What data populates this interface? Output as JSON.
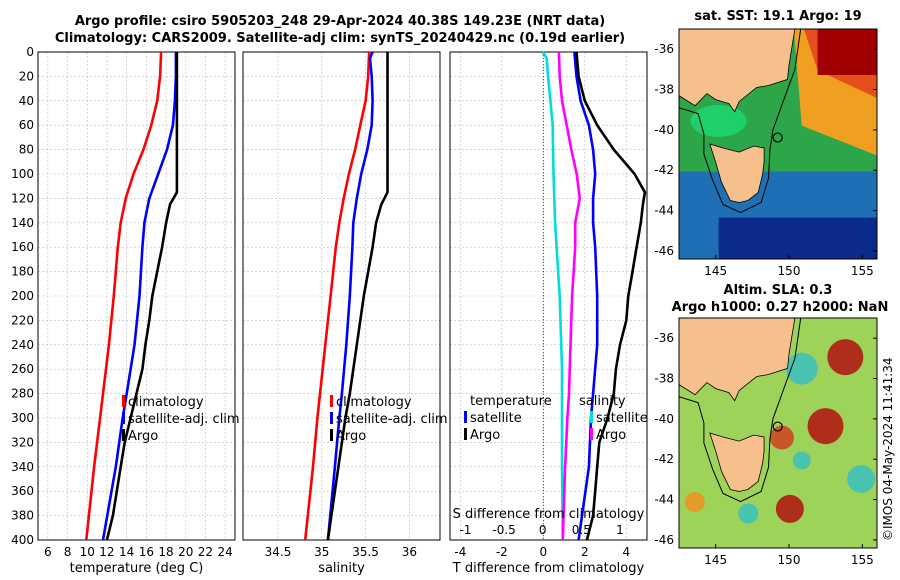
{
  "header": {
    "line1": "Argo profile: csiro 5905203_248 29-Apr-2024 40.38S 149.23E (NRT data)",
    "line2": "Climatology: CARS2009. Satellite-adj clim: synTS_20240429.nc (0.19d earlier)"
  },
  "maps": {
    "sst_title": "sat. SST: 19.1 Argo: 19",
    "altim_title_1": "Altim. SLA: 0.3",
    "altim_title_2": "Argo h1000: 0.27 h2000: NaN",
    "lat_ticks": [
      "-36",
      "-38",
      "-40",
      "-42",
      "-44",
      "-46"
    ],
    "lon_ticks": [
      "145",
      "150",
      "155"
    ],
    "float_marker": {
      "lon": 149.23,
      "lat": -40.38
    }
  },
  "stamp": "©IMOS 04-May-2024 11:41:34",
  "colors": {
    "climatology": "#ff0000",
    "satellite": "#0000ff",
    "argo": "#000000",
    "salinity_diff": "#ff00ff",
    "satellite_s_diff": "#00dddd"
  },
  "chart_data": [
    {
      "type": "line",
      "xlabel": "temperature (deg C)",
      "ylabel": "depth",
      "xlim": [
        5,
        25
      ],
      "ylim": [
        400,
        0
      ],
      "xticks": [
        6,
        8,
        10,
        12,
        14,
        16,
        18,
        20,
        22,
        24
      ],
      "yticks": [
        0,
        20,
        40,
        60,
        80,
        100,
        120,
        140,
        160,
        180,
        200,
        220,
        240,
        260,
        280,
        300,
        320,
        340,
        360,
        380,
        400
      ],
      "grid": true,
      "legend": "lower-right",
      "legend_labels": [
        "climatology",
        "satellite-adj. clim",
        "Argo"
      ],
      "series": [
        {
          "name": "climatology",
          "depth": [
            0,
            20,
            40,
            60,
            80,
            100,
            120,
            140,
            160,
            200,
            240,
            280,
            300,
            340,
            400
          ],
          "values": [
            17.5,
            17.4,
            17.1,
            16.5,
            15.7,
            14.7,
            13.9,
            13.4,
            13.1,
            12.7,
            12.2,
            11.6,
            11.3,
            10.7,
            9.9
          ]
        },
        {
          "name": "satellite-adj. clim",
          "depth": [
            0,
            20,
            40,
            60,
            80,
            100,
            120,
            140,
            160,
            200,
            240,
            280,
            300,
            340,
            400
          ],
          "values": [
            19.0,
            19.0,
            18.9,
            18.7,
            18.1,
            17.2,
            16.3,
            15.8,
            15.6,
            15.3,
            14.8,
            14.0,
            13.6,
            12.9,
            11.6
          ]
        },
        {
          "name": "Argo",
          "depth": [
            0,
            20,
            40,
            60,
            80,
            100,
            115,
            125,
            140,
            160,
            180,
            200,
            220,
            240,
            260,
            280,
            300,
            320,
            340,
            360,
            380,
            400
          ],
          "values": [
            19.1,
            19.1,
            19.1,
            19.1,
            19.1,
            19.1,
            19.1,
            18.4,
            18.0,
            17.6,
            17.1,
            16.6,
            16.3,
            15.9,
            15.6,
            15.0,
            14.4,
            13.8,
            13.4,
            13.0,
            12.6,
            12.0
          ]
        }
      ]
    },
    {
      "type": "line",
      "xlabel": "salinity",
      "ylabel": "depth",
      "xlim": [
        34.1,
        36.35
      ],
      "ylim": [
        400,
        0
      ],
      "xticks": [
        34.5,
        35,
        35.5,
        36
      ],
      "grid": true,
      "legend": "lower-right",
      "legend_labels": [
        "climatology",
        "satellite-adj. clim",
        "Argo"
      ],
      "series": [
        {
          "name": "climatology",
          "depth": [
            0,
            20,
            40,
            60,
            80,
            100,
            120,
            140,
            160,
            200,
            240,
            280,
            300,
            340,
            400
          ],
          "values": [
            35.54,
            35.53,
            35.5,
            35.44,
            35.38,
            35.31,
            35.25,
            35.2,
            35.16,
            35.1,
            35.04,
            34.98,
            34.95,
            34.9,
            34.81
          ]
        },
        {
          "name": "satellite-adj. clim",
          "depth": [
            0,
            5,
            20,
            40,
            60,
            80,
            100,
            120,
            140,
            160,
            200,
            240,
            280,
            300,
            340,
            400
          ],
          "values": [
            35.58,
            35.55,
            35.57,
            35.58,
            35.57,
            35.52,
            35.45,
            35.4,
            35.36,
            35.35,
            35.32,
            35.28,
            35.23,
            35.2,
            35.15,
            35.07
          ]
        },
        {
          "name": "Argo",
          "depth": [
            0,
            20,
            40,
            60,
            80,
            100,
            115,
            125,
            140,
            160,
            180,
            200,
            220,
            240,
            260,
            280,
            300,
            320,
            340,
            360,
            380,
            400
          ],
          "values": [
            35.75,
            35.75,
            35.75,
            35.75,
            35.75,
            35.75,
            35.75,
            35.68,
            35.62,
            35.58,
            35.53,
            35.48,
            35.44,
            35.4,
            35.36,
            35.32,
            35.27,
            35.23,
            35.19,
            35.15,
            35.11,
            35.07
          ]
        }
      ]
    },
    {
      "type": "line",
      "xlabel": "T difference from climatology",
      "x2label": "S difference from climatology",
      "ylabel": "depth",
      "xlim": [
        -4.5,
        5.0
      ],
      "ylim": [
        400,
        0
      ],
      "xticks": [
        -4,
        -2,
        0,
        2,
        4
      ],
      "x2ticks": [
        -1,
        -0.5,
        0,
        0.5,
        1
      ],
      "x2lim": [
        -1.2,
        1.35
      ],
      "grid": true,
      "legend": "lower-right",
      "legend_left_title": "temperature",
      "legend_right_title": "salinity",
      "legend_labels": [
        "satellite",
        "Argo"
      ],
      "series": [
        {
          "name": "T satellite",
          "depth": [
            0,
            20,
            40,
            60,
            80,
            100,
            120,
            140,
            160,
            200,
            240,
            280,
            300,
            340,
            400
          ],
          "values": [
            1.5,
            1.6,
            1.8,
            2.2,
            2.4,
            2.5,
            2.4,
            2.4,
            2.5,
            2.6,
            2.6,
            2.4,
            2.3,
            2.2,
            1.7
          ]
        },
        {
          "name": "T Argo",
          "depth": [
            0,
            20,
            40,
            60,
            80,
            100,
            115,
            125,
            140,
            160,
            180,
            200,
            220,
            240,
            260,
            280,
            300,
            320,
            340,
            360,
            380,
            400
          ],
          "values": [
            1.6,
            1.7,
            2.0,
            2.6,
            3.4,
            4.4,
            4.9,
            4.8,
            4.7,
            4.5,
            4.3,
            4.1,
            4.0,
            3.7,
            3.5,
            3.4,
            3.1,
            2.7,
            2.6,
            2.5,
            2.4,
            2.1
          ]
        },
        {
          "name": "S satellite",
          "depth": [
            0,
            5,
            20,
            60,
            100,
            140,
            200,
            260,
            300,
            340,
            400
          ],
          "values": [
            0.0,
            0.05,
            0.07,
            0.13,
            0.14,
            0.16,
            0.22,
            0.25,
            0.25,
            0.25,
            0.26
          ]
        },
        {
          "name": "S Argo",
          "depth": [
            0,
            20,
            40,
            60,
            80,
            100,
            120,
            140,
            160,
            200,
            240,
            280,
            300,
            340,
            400
          ],
          "values": [
            0.21,
            0.22,
            0.25,
            0.31,
            0.37,
            0.44,
            0.48,
            0.42,
            0.42,
            0.38,
            0.36,
            0.34,
            0.32,
            0.29,
            0.26
          ]
        }
      ]
    }
  ]
}
